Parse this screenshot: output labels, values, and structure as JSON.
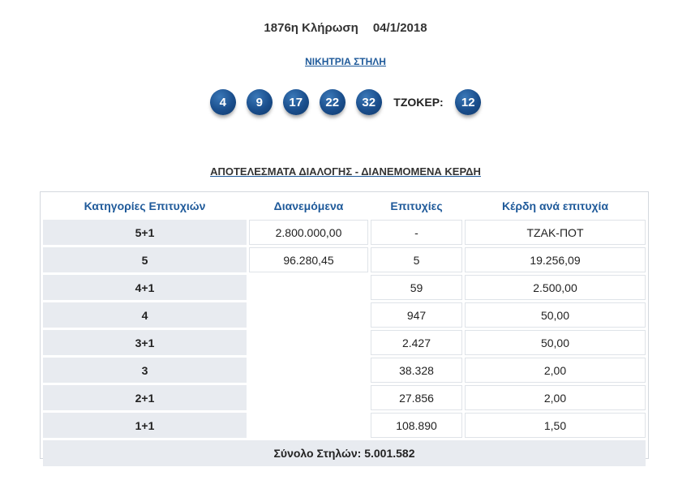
{
  "header": {
    "draw": "1876η Κλήρωση",
    "date": "04/1/2018"
  },
  "winning_link": "ΝΙΚΗΤΡΙΑ ΣΤΗΛΗ",
  "numbers": [
    "4",
    "9",
    "17",
    "22",
    "32"
  ],
  "joker_label": "ΤΖΟΚΕΡ:",
  "joker": "12",
  "ball_color": "#1a4e8c",
  "results_title": "ΑΠΟΤΕΛΕΣΜΑΤΑ ΔΙΑΛΟΓΗΣ - ΔΙΑΝΕΜΟΜΕΝΑ ΚΕΡΔΗ",
  "table": {
    "headers": [
      "Κατηγορίες Επιτυχιών",
      "Διανεμόμενα",
      "Επιτυχίες",
      "Κέρδη ανά επιτυχία"
    ],
    "rows": [
      {
        "category": "5+1",
        "distributed": "2.800.000,00",
        "winners": "-",
        "prize": "ΤΖΑΚ-ΠΟΤ"
      },
      {
        "category": "5",
        "distributed": "96.280,45",
        "winners": "5",
        "prize": "19.256,09"
      },
      {
        "category": "4+1",
        "distributed": "",
        "winners": "59",
        "prize": "2.500,00"
      },
      {
        "category": "4",
        "distributed": "",
        "winners": "947",
        "prize": "50,00"
      },
      {
        "category": "3+1",
        "distributed": "",
        "winners": "2.427",
        "prize": "50,00"
      },
      {
        "category": "3",
        "distributed": "",
        "winners": "38.328",
        "prize": "2,00"
      },
      {
        "category": "2+1",
        "distributed": "",
        "winners": "27.856",
        "prize": "2,00"
      },
      {
        "category": "1+1",
        "distributed": "",
        "winners": "108.890",
        "prize": "1,50"
      }
    ],
    "total": "Σύνολο Στηλών: 5.001.582"
  }
}
